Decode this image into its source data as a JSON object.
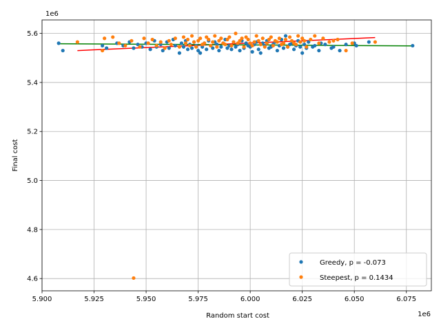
{
  "chart_data": {
    "type": "scatter",
    "xlabel": "Random start cost",
    "ylabel": "Final cost",
    "x_offset_label": "1e6",
    "y_offset_label": "1e6",
    "xlim": [
      5.9,
      6.087
    ],
    "ylim": [
      4.55,
      5.655
    ],
    "x_ticks": [
      5.9,
      5.925,
      5.95,
      5.975,
      6.0,
      6.025,
      6.05,
      6.075
    ],
    "x_tick_labels": [
      "5.900",
      "5.925",
      "5.950",
      "5.975",
      "6.000",
      "6.025",
      "6.050",
      "6.075"
    ],
    "y_ticks": [
      4.6,
      4.8,
      5.0,
      5.2,
      5.4,
      5.6
    ],
    "y_tick_labels": [
      "4.6",
      "4.8",
      "5.0",
      "5.2",
      "5.4",
      "5.6"
    ],
    "grid": true,
    "legend_position": "lower-right",
    "series": [
      {
        "name": "Greedy, p = -0.073",
        "color": "#1f77b4",
        "x": [
          5.908,
          5.91,
          5.929,
          5.931,
          5.936,
          5.939,
          5.942,
          5.944,
          5.946,
          5.948,
          5.95,
          5.952,
          5.954,
          5.955,
          5.957,
          5.958,
          5.96,
          5.961,
          5.963,
          5.964,
          5.966,
          5.967,
          5.968,
          5.969,
          5.97,
          5.971,
          5.972,
          5.973,
          5.974,
          5.975,
          5.976,
          5.977,
          5.978,
          5.979,
          5.98,
          5.981,
          5.982,
          5.983,
          5.984,
          5.985,
          5.986,
          5.987,
          5.988,
          5.989,
          5.99,
          5.991,
          5.992,
          5.993,
          5.994,
          5.995,
          5.996,
          5.997,
          5.998,
          5.999,
          6.0,
          6.001,
          6.002,
          6.003,
          6.004,
          6.005,
          6.006,
          6.007,
          6.008,
          6.009,
          6.01,
          6.011,
          6.012,
          6.013,
          6.014,
          6.015,
          6.016,
          6.017,
          6.018,
          6.019,
          6.02,
          6.021,
          6.022,
          6.023,
          6.024,
          6.025,
          6.026,
          6.027,
          6.028,
          6.03,
          6.031,
          6.033,
          6.034,
          6.036,
          6.039,
          6.04,
          6.043,
          6.046,
          6.05,
          6.051,
          6.057,
          6.078
        ],
        "y": [
          5.56,
          5.53,
          5.55,
          5.54,
          5.56,
          5.55,
          5.565,
          5.54,
          5.555,
          5.545,
          5.56,
          5.535,
          5.57,
          5.545,
          5.555,
          5.53,
          5.565,
          5.54,
          5.575,
          5.55,
          5.52,
          5.56,
          5.545,
          5.57,
          5.535,
          5.555,
          5.54,
          5.565,
          5.55,
          5.53,
          5.52,
          5.545,
          5.56,
          5.535,
          5.57,
          5.55,
          5.54,
          5.565,
          5.555,
          5.53,
          5.545,
          5.56,
          5.575,
          5.54,
          5.55,
          5.535,
          5.565,
          5.545,
          5.555,
          5.53,
          5.57,
          5.54,
          5.56,
          5.55,
          5.545,
          5.525,
          5.555,
          5.565,
          5.535,
          5.52,
          5.56,
          5.55,
          5.57,
          5.54,
          5.545,
          5.555,
          5.565,
          5.53,
          5.55,
          5.575,
          5.54,
          5.59,
          5.545,
          5.555,
          5.56,
          5.535,
          5.55,
          5.57,
          5.545,
          5.52,
          5.555,
          5.54,
          5.565,
          5.545,
          5.55,
          5.53,
          5.56,
          5.555,
          5.54,
          5.545,
          5.53,
          5.555,
          5.56,
          5.55,
          5.565,
          5.55
        ]
      },
      {
        "name": "Steepest, p = 0.1434",
        "color": "#ff7f0e",
        "x": [
          5.917,
          5.929,
          5.93,
          5.934,
          5.937,
          5.94,
          5.943,
          5.944,
          5.947,
          5.949,
          5.951,
          5.953,
          5.955,
          5.957,
          5.959,
          5.961,
          5.962,
          5.964,
          5.966,
          5.968,
          5.969,
          5.97,
          5.971,
          5.972,
          5.973,
          5.974,
          5.975,
          5.976,
          5.977,
          5.978,
          5.979,
          5.98,
          5.981,
          5.982,
          5.983,
          5.984,
          5.985,
          5.986,
          5.987,
          5.988,
          5.989,
          5.99,
          5.991,
          5.992,
          5.993,
          5.994,
          5.995,
          5.996,
          5.997,
          5.998,
          5.999,
          6.0,
          6.001,
          6.002,
          6.003,
          6.004,
          6.005,
          6.006,
          6.007,
          6.008,
          6.009,
          6.01,
          6.011,
          6.012,
          6.013,
          6.014,
          6.015,
          6.016,
          6.017,
          6.018,
          6.019,
          6.02,
          6.021,
          6.022,
          6.023,
          6.024,
          6.025,
          6.026,
          6.027,
          6.029,
          6.031,
          6.033,
          6.035,
          6.038,
          6.04,
          6.042,
          6.046,
          6.049,
          6.06
        ],
        "y": [
          5.565,
          5.53,
          5.58,
          5.585,
          5.56,
          5.55,
          5.57,
          4.602,
          5.545,
          5.58,
          5.56,
          5.575,
          5.55,
          5.565,
          5.54,
          5.57,
          5.555,
          5.58,
          5.545,
          5.585,
          5.56,
          5.575,
          5.55,
          5.59,
          5.565,
          5.545,
          5.57,
          5.58,
          5.555,
          5.56,
          5.585,
          5.575,
          5.55,
          5.565,
          5.59,
          5.545,
          5.57,
          5.58,
          5.56,
          5.555,
          5.575,
          5.585,
          5.55,
          5.565,
          5.6,
          5.56,
          5.57,
          5.58,
          5.545,
          5.585,
          5.575,
          5.56,
          5.55,
          5.565,
          5.59,
          5.57,
          5.555,
          5.58,
          5.545,
          5.56,
          5.575,
          5.585,
          5.55,
          5.57,
          5.565,
          5.58,
          5.555,
          5.56,
          5.575,
          5.545,
          5.585,
          5.57,
          5.56,
          5.555,
          5.59,
          5.565,
          5.58,
          5.57,
          5.545,
          5.575,
          5.59,
          5.56,
          5.58,
          5.565,
          5.57,
          5.575,
          5.53,
          5.56,
          5.565
        ]
      }
    ],
    "trend_lines": [
      {
        "color": "#ff0000",
        "x": [
          5.917,
          6.06
        ],
        "y": [
          5.53,
          5.583
        ]
      },
      {
        "color": "#008000",
        "x": [
          5.908,
          6.078
        ],
        "y": [
          5.558,
          5.549
        ]
      }
    ]
  }
}
